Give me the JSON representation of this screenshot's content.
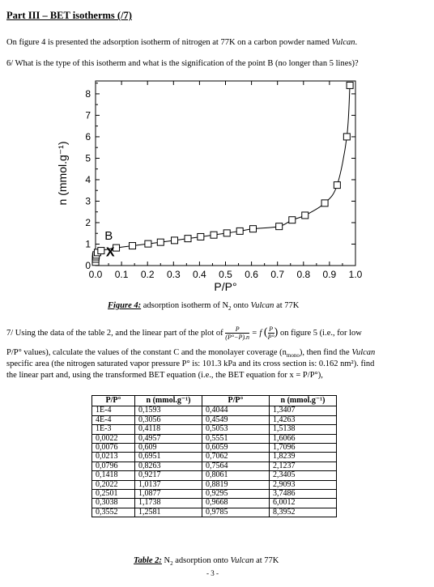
{
  "heading": "Part III – BET isotherms (/7)",
  "intro_prefix": "On figure 4 is presented the adsorption isotherm of nitrogen at 77K on a carbon powder named ",
  "intro_sample": "Vulcan",
  "intro_suffix": ".",
  "question6": "6/ What is the type of this isotherm and what is the signification of the point B (no longer than 5 lines)?",
  "figure": {
    "caption_label": "Figure 4:",
    "caption_text_a": " adsorption isotherm of N",
    "caption_sub": "2",
    "caption_text_b": " onto ",
    "caption_sample": "Vulcan",
    "caption_text_c": " at 77K"
  },
  "question7": {
    "part_a": "7/ Using the data of the table 2, and the linear part of the plot of ",
    "frac_num": "P",
    "frac_den": "(P°−P).n",
    "eq_mid": " = f ",
    "eq_paren_num": "P",
    "eq_paren_den": "P°",
    "part_b": " on figure 5 (i.e., for low",
    "line2": "P/P° values), calculate the values of the constant C and the monolayer coverage (n",
    "line2_sub": "mono",
    "line2_b": "), then find the ",
    "line2_sample": "Vulcan",
    "line3": "specific area (the nitrogen saturated vapor pressure P° is: 101.3 kPa and its cross section is: 0.162 nm²). find",
    "line4": "the linear part  and, using the transformed BET equation (i.e., the BET equation for x = P/P°),"
  },
  "table": {
    "headers": [
      "P/P°",
      "n (mmol.g⁻¹)",
      "P/P°",
      "n (mmol.g⁻¹)"
    ],
    "rows": [
      [
        "1E-4",
        "0,1593",
        "0,4044",
        "1,3407"
      ],
      [
        "4E-4",
        "0,3056",
        "0,4549",
        "1,4263"
      ],
      [
        "1E-3",
        "0,4118",
        "0,5053",
        "1,5138"
      ],
      [
        "0,0022",
        "0,4957",
        "0,5551",
        "1,6066"
      ],
      [
        "0,0076",
        "0,609",
        "0,6059",
        "1,7096"
      ],
      [
        "0,0213",
        "0,6951",
        "0,7062",
        "1,8239"
      ],
      [
        "0,0796",
        "0,8263",
        "0,7564",
        "2,1237"
      ],
      [
        "0,1418",
        "0,9217",
        "0,8061",
        "2,3405"
      ],
      [
        "0,2022",
        "1,0137",
        "0,8819",
        "2,9093"
      ],
      [
        "0,2501",
        "1,0877",
        "0,9295",
        "3,7486"
      ],
      [
        "0,3038",
        "1,1738",
        "0,9668",
        "6,0012"
      ],
      [
        "0,3552",
        "1,2581",
        "0,9785",
        "8,3952"
      ]
    ],
    "caption_label": "Table 2:",
    "caption_text_a": " N",
    "caption_sub": "2",
    "caption_text_b": " adsorption onto ",
    "caption_sample": "Vulcan",
    "caption_text_c": " at 77K"
  },
  "page_number": "- 3 -",
  "chart_data": {
    "type": "scatter",
    "xlabel": "P/P°",
    "ylabel": "n (mmol.g⁻¹)",
    "xlim": [
      0,
      1.0
    ],
    "ylim": [
      0,
      8.6
    ],
    "xticks": [
      "0.0",
      "0.1",
      "0.2",
      "0.3",
      "0.4",
      "0.5",
      "0.6",
      "0.7",
      "0.8",
      "0.9",
      "1.0"
    ],
    "yticks": [
      "0",
      "1",
      "2",
      "3",
      "4",
      "5",
      "6",
      "7",
      "8"
    ],
    "annotations": [
      {
        "text": "B",
        "x": 0.035,
        "y": 1.4
      },
      {
        "text": "X",
        "x": 0.04,
        "y": 0.62
      }
    ],
    "series": [
      {
        "marker": "open-square",
        "points": [
          [
            0.0001,
            0.1593
          ],
          [
            0.0004,
            0.3056
          ],
          [
            0.001,
            0.4118
          ],
          [
            0.0022,
            0.4957
          ],
          [
            0.0076,
            0.609
          ],
          [
            0.0213,
            0.6951
          ],
          [
            0.0796,
            0.8263
          ],
          [
            0.1418,
            0.9217
          ],
          [
            0.2022,
            1.0137
          ],
          [
            0.2501,
            1.0877
          ],
          [
            0.3038,
            1.1738
          ],
          [
            0.3552,
            1.2581
          ],
          [
            0.4044,
            1.3407
          ],
          [
            0.4549,
            1.4263
          ],
          [
            0.5053,
            1.5138
          ],
          [
            0.5551,
            1.6066
          ],
          [
            0.6059,
            1.7096
          ],
          [
            0.7062,
            1.8239
          ],
          [
            0.7564,
            2.1237
          ],
          [
            0.8061,
            2.3405
          ],
          [
            0.8819,
            2.9093
          ],
          [
            0.9295,
            3.7486
          ],
          [
            0.9668,
            6.0012
          ],
          [
            0.9785,
            8.3952
          ]
        ]
      }
    ],
    "grid": false
  }
}
